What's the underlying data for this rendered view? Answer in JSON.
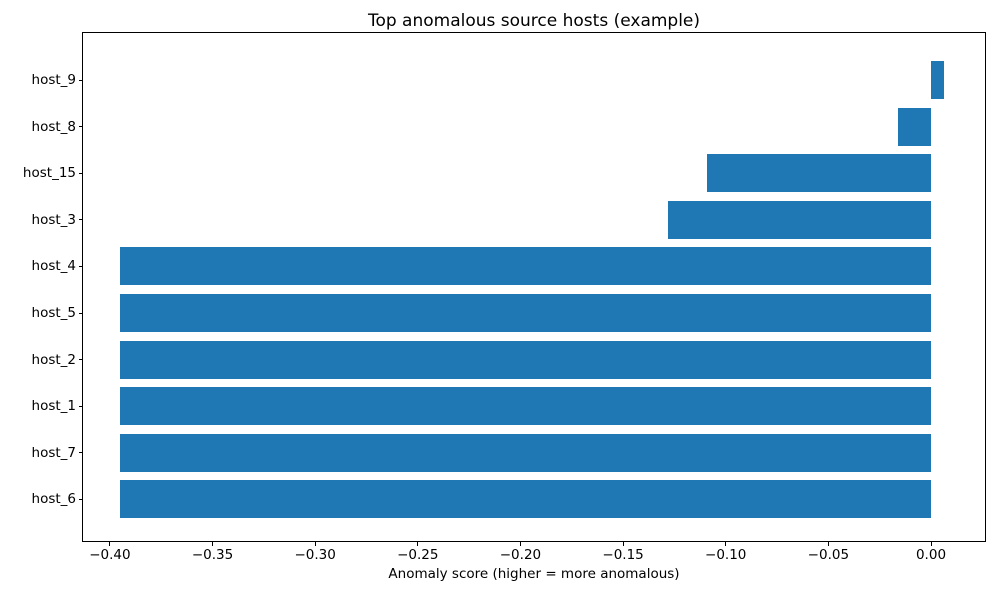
{
  "chart_data": {
    "type": "bar",
    "orientation": "horizontal",
    "title": "Top anomalous source hosts (example)",
    "xlabel": "Anomaly score (higher = more anomalous)",
    "ylabel": "",
    "categories_top_to_bottom": [
      "host_9",
      "host_8",
      "host_15",
      "host_3",
      "host_4",
      "host_5",
      "host_2",
      "host_1",
      "host_7",
      "host_6"
    ],
    "values": [
      0.0065,
      -0.016,
      -0.109,
      -0.128,
      -0.395,
      -0.395,
      -0.395,
      -0.395,
      -0.395,
      -0.395
    ],
    "xlim": [
      -0.4131,
      0.0263
    ],
    "xticks": {
      "values": [
        -0.4,
        -0.35,
        -0.3,
        -0.25,
        -0.2,
        -0.15,
        -0.1,
        -0.05,
        0.0
      ],
      "labels": [
        "−0.40",
        "−0.35",
        "−0.30",
        "−0.25",
        "−0.20",
        "−0.15",
        "−0.10",
        "−0.05",
        "0.00"
      ]
    },
    "grid": false,
    "legend": null,
    "colors": {
      "bar": "#1f77b4",
      "spine": "#000000",
      "text": "#000000",
      "background": "#ffffff"
    }
  }
}
